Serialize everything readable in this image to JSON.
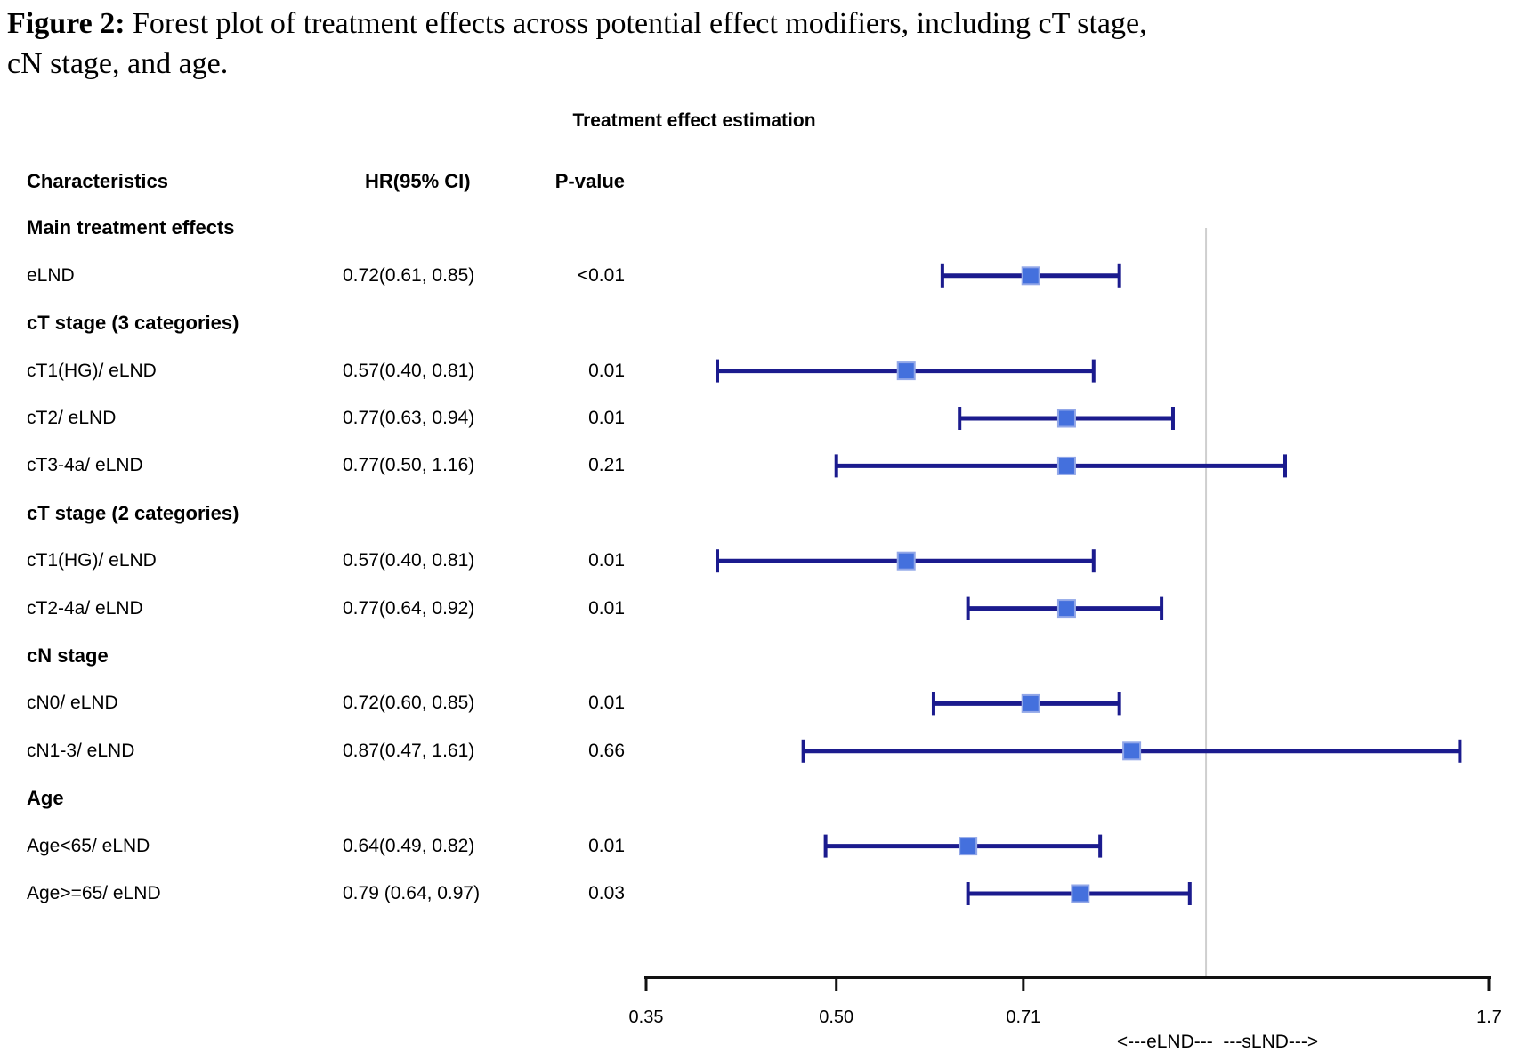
{
  "figure_caption": {
    "prefix": "Figure 2:",
    "line1_rest": " Forest plot of treatment effects across potential effect modifiers, including cT stage,",
    "line2": "cN stage, and age."
  },
  "chart_data": {
    "type": "forest",
    "title": "Treatment effect estimation",
    "columns": {
      "characteristics": "Characteristics",
      "hr": "HR(95% CI)",
      "pvalue": "P-value"
    },
    "axis": {
      "scale": "log",
      "xmin": 0.35,
      "xmax": 1.7,
      "ticks": [
        0.35,
        0.5,
        0.71,
        1.7
      ],
      "tick_labels": [
        "0.35",
        "0.50",
        "0.71",
        "1.7"
      ],
      "reference_value": 1.0,
      "xlabel": "<---eLND---  ---sLND--->"
    },
    "rows": [
      {
        "kind": "section",
        "label": "Main treatment effects"
      },
      {
        "kind": "item",
        "label": "eLND",
        "hr_text": "0.72(0.61, 0.85)",
        "p": "<0.01",
        "hr": 0.72,
        "lo": 0.61,
        "hi": 0.85
      },
      {
        "kind": "section",
        "label": "cT stage (3 categories)"
      },
      {
        "kind": "item",
        "label": "cT1(HG)/ eLND",
        "hr_text": "0.57(0.40, 0.81)",
        "p": "0.01",
        "hr": 0.57,
        "lo": 0.4,
        "hi": 0.81
      },
      {
        "kind": "item",
        "label": "cT2/ eLND",
        "hr_text": "0.77(0.63, 0.94)",
        "p": "0.01",
        "hr": 0.77,
        "lo": 0.63,
        "hi": 0.94
      },
      {
        "kind": "item",
        "label": "cT3-4a/ eLND",
        "hr_text": "0.77(0.50, 1.16)",
        "p": "0.21",
        "hr": 0.77,
        "lo": 0.5,
        "hi": 1.16
      },
      {
        "kind": "section",
        "label": "cT stage (2 categories)"
      },
      {
        "kind": "item",
        "label": "cT1(HG)/ eLND",
        "hr_text": "0.57(0.40, 0.81)",
        "p": "0.01",
        "hr": 0.57,
        "lo": 0.4,
        "hi": 0.81
      },
      {
        "kind": "item",
        "label": "cT2-4a/ eLND",
        "hr_text": "0.77(0.64, 0.92)",
        "p": "0.01",
        "hr": 0.77,
        "lo": 0.64,
        "hi": 0.92
      },
      {
        "kind": "section",
        "label": "cN stage"
      },
      {
        "kind": "item",
        "label": "cN0/ eLND",
        "hr_text": "0.72(0.60, 0.85)",
        "p": "0.01",
        "hr": 0.72,
        "lo": 0.6,
        "hi": 0.85
      },
      {
        "kind": "item",
        "label": "cN1-3/ eLND",
        "hr_text": "0.87(0.47, 1.61)",
        "p": "0.66",
        "hr": 0.87,
        "lo": 0.47,
        "hi": 1.61
      },
      {
        "kind": "section",
        "label": "Age"
      },
      {
        "kind": "item",
        "label": "Age<65/ eLND",
        "hr_text": "0.64(0.49, 0.82)",
        "p": "0.01",
        "hr": 0.64,
        "lo": 0.49,
        "hi": 0.82
      },
      {
        "kind": "item",
        "label": "Age>=65/ eLND",
        "hr_text": "0.79 (0.64, 0.97)",
        "p": "0.03",
        "hr": 0.79,
        "lo": 0.64,
        "hi": 0.97
      }
    ],
    "colors": {
      "ci_line": "#1b1b8e",
      "marker_fill": "#4470dd",
      "marker_border": "#92a7e8",
      "reference_line": "#cfcfcf",
      "axis": "#111111"
    }
  }
}
